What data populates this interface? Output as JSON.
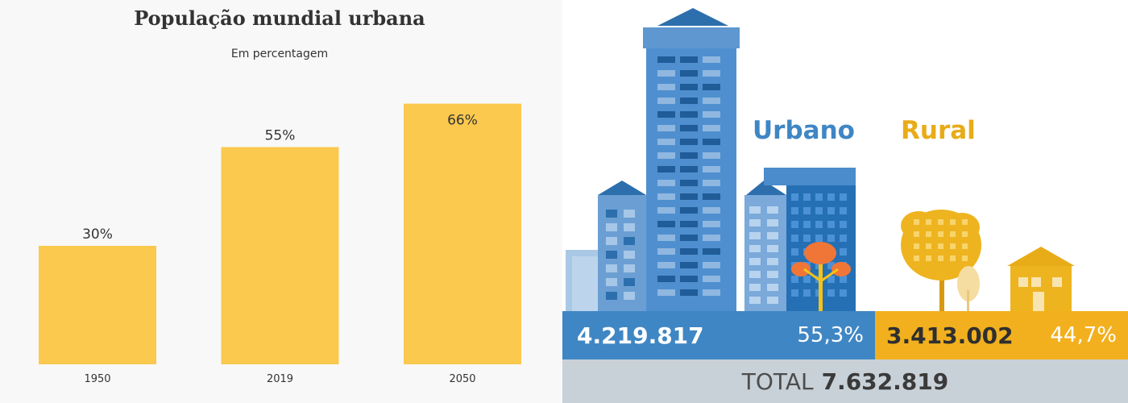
{
  "left_chart": {
    "title": "População mundial urbana",
    "subtitle": "Em percentagem",
    "bar_color": "#fac94e",
    "chart_data": {
      "type": "bar",
      "title": "População mundial urbana",
      "subtitle": "Em percentagem",
      "categories": [
        "1950",
        "2019",
        "2050"
      ],
      "values": [
        30,
        55,
        66
      ],
      "value_labels": [
        "30%",
        "55%",
        "66%"
      ],
      "xlabel": "",
      "ylabel": "",
      "ylim": [
        0,
        100
      ],
      "grid": false
    }
  },
  "right_infographic": {
    "urban_label": "Urbano",
    "rural_label": "Rural",
    "urban_count": "4.219.817",
    "urban_pct": "55,3%",
    "rural_count": "3.413.002",
    "rural_pct": "44,7%",
    "total_label": "TOTAL",
    "total_value": "7.632.819",
    "colors": {
      "urban": "#3f86c4",
      "rural": "#f2b01e",
      "total_band": "#c9d1d8"
    },
    "icons": [
      "city-buildings-icon",
      "tree-icon",
      "house-icon"
    ]
  }
}
